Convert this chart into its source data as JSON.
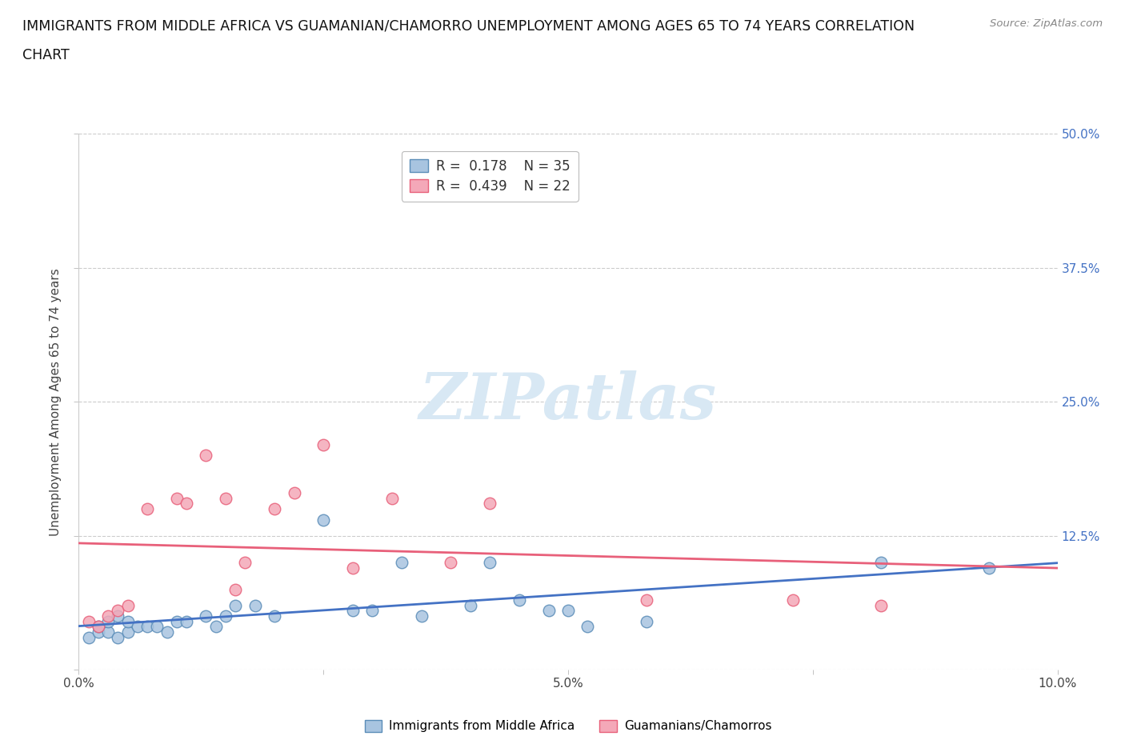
{
  "title_line1": "IMMIGRANTS FROM MIDDLE AFRICA VS GUAMANIAN/CHAMORRO UNEMPLOYMENT AMONG AGES 65 TO 74 YEARS CORRELATION",
  "title_line2": "CHART",
  "source": "Source: ZipAtlas.com",
  "ylabel": "Unemployment Among Ages 65 to 74 years",
  "xlim": [
    0.0,
    0.1
  ],
  "ylim": [
    0.0,
    0.5
  ],
  "xticks": [
    0.0,
    0.025,
    0.05,
    0.075,
    0.1
  ],
  "xtick_labels": [
    "0.0%",
    "",
    "5.0%",
    "",
    "10.0%"
  ],
  "yticks": [
    0.0,
    0.125,
    0.25,
    0.375,
    0.5
  ],
  "ytick_labels": [
    "",
    "12.5%",
    "25.0%",
    "37.5%",
    "50.0%"
  ],
  "blue_R": "0.178",
  "blue_N": "35",
  "pink_R": "0.439",
  "pink_N": "22",
  "blue_color": "#A8C4E0",
  "pink_color": "#F4A8B8",
  "blue_edge_color": "#5B8DB8",
  "pink_edge_color": "#E8607A",
  "blue_line_color": "#4472C4",
  "pink_line_color": "#E8607A",
  "blue_label": "Immigrants from Middle Africa",
  "pink_label": "Guamanians/Chamorros",
  "background_color": "#ffffff",
  "watermark_color": "#D8E8F4",
  "blue_x": [
    0.001,
    0.002,
    0.002,
    0.003,
    0.003,
    0.004,
    0.004,
    0.005,
    0.005,
    0.006,
    0.007,
    0.008,
    0.009,
    0.01,
    0.011,
    0.013,
    0.014,
    0.015,
    0.016,
    0.018,
    0.02,
    0.025,
    0.028,
    0.03,
    0.033,
    0.035,
    0.04,
    0.042,
    0.045,
    0.048,
    0.05,
    0.052,
    0.058,
    0.082,
    0.093
  ],
  "blue_y": [
    0.03,
    0.035,
    0.04,
    0.035,
    0.045,
    0.03,
    0.05,
    0.035,
    0.045,
    0.04,
    0.04,
    0.04,
    0.035,
    0.045,
    0.045,
    0.05,
    0.04,
    0.05,
    0.06,
    0.06,
    0.05,
    0.14,
    0.055,
    0.055,
    0.1,
    0.05,
    0.06,
    0.1,
    0.065,
    0.055,
    0.055,
    0.04,
    0.045,
    0.1,
    0.095
  ],
  "pink_x": [
    0.001,
    0.002,
    0.003,
    0.004,
    0.005,
    0.007,
    0.01,
    0.011,
    0.013,
    0.015,
    0.016,
    0.017,
    0.02,
    0.022,
    0.025,
    0.028,
    0.032,
    0.038,
    0.042,
    0.058,
    0.073,
    0.082
  ],
  "pink_y": [
    0.045,
    0.04,
    0.05,
    0.055,
    0.06,
    0.15,
    0.16,
    0.155,
    0.2,
    0.16,
    0.075,
    0.1,
    0.15,
    0.165,
    0.21,
    0.095,
    0.16,
    0.1,
    0.155,
    0.065,
    0.065,
    0.06
  ]
}
